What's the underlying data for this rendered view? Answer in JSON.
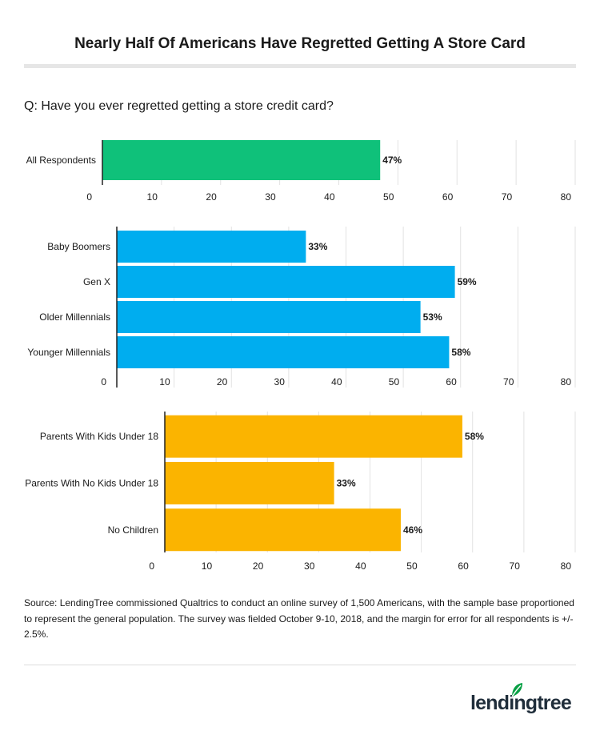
{
  "title": "Nearly Half Of Americans Have Regretted Getting A Store Card",
  "question": "Q:  Have you ever regretted getting a store credit card?",
  "chart_data": [
    {
      "type": "bar",
      "orientation": "horizontal",
      "categories": [
        "All Respondents"
      ],
      "values": [
        47
      ],
      "value_labels": [
        "47%"
      ],
      "xlim": [
        0,
        80
      ],
      "xticks": [
        "0",
        "10",
        "20",
        "30",
        "40",
        "50",
        "60",
        "70",
        "80"
      ],
      "color": "#0fc17a"
    },
    {
      "type": "bar",
      "orientation": "horizontal",
      "categories": [
        "Baby Boomers",
        "Gen X",
        "Older Millennials",
        "Younger Millennials"
      ],
      "values": [
        33,
        59,
        53,
        58
      ],
      "value_labels": [
        "33%",
        "59%",
        "53%",
        "58%"
      ],
      "xlim": [
        0,
        80
      ],
      "xticks": [
        "0",
        "10",
        "20",
        "30",
        "40",
        "50",
        "60",
        "70",
        "80"
      ],
      "color": "#00adef"
    },
    {
      "type": "bar",
      "orientation": "horizontal",
      "categories": [
        "Parents With Kids Under 18",
        "Parents With No Kids Under 18",
        "No Children"
      ],
      "values": [
        58,
        33,
        46
      ],
      "value_labels": [
        "58%",
        "33%",
        "46%"
      ],
      "xlim": [
        0,
        80
      ],
      "xticks": [
        "0",
        "10",
        "20",
        "30",
        "40",
        "50",
        "60",
        "70",
        "80"
      ],
      "color": "#fbb400"
    }
  ],
  "source": "Source: LendingTree commissioned Qualtrics to conduct an online survey of 1,500 Americans, with the sample base proportioned to represent the general population. The survey was fielded October 9-10, 2018, and the margin for error for all respondents is +/- 2.5%.",
  "logo": {
    "text": "lendingtree",
    "icon": "leaf-icon",
    "color": "#08a045"
  }
}
